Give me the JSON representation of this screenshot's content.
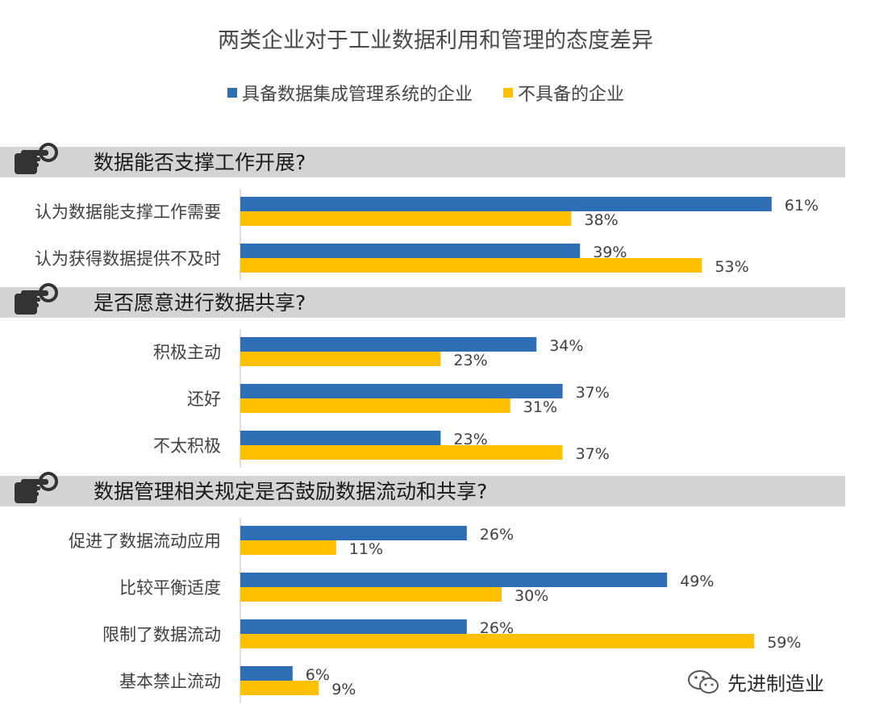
{
  "chart_data": {
    "type": "bar",
    "orientation": "horizontal",
    "title": "两类企业对于工业数据利用和管理的态度差异",
    "legend_placement": "top",
    "series": [
      {
        "name": "具备数据集成管理系统的企业",
        "color": "#2f6eb5"
      },
      {
        "name": "不具备的企业",
        "color": "#ffc000"
      }
    ],
    "value_suffix": "%",
    "xlim": [
      0,
      70
    ],
    "sections": [
      {
        "heading": "数据能否支撑工作开展?",
        "categories": [
          "认为数据能支撑工作需要",
          "认为获得数据提供不及时"
        ],
        "values": [
          [
            61,
            38
          ],
          [
            39,
            53
          ]
        ]
      },
      {
        "heading": "是否愿意进行数据共享?",
        "categories": [
          "积极主动",
          "还好",
          "不太积极"
        ],
        "values": [
          [
            34,
            23
          ],
          [
            37,
            31
          ],
          [
            23,
            37
          ]
        ]
      },
      {
        "heading": "数据管理相关规定是否鼓励数据流动和共享?",
        "categories": [
          "促进了数据流动应用",
          "比较平衡适度",
          "限制了数据流动",
          "基本禁止流动"
        ],
        "values": [
          [
            26,
            11
          ],
          [
            49,
            30
          ],
          [
            26,
            59
          ],
          [
            6,
            9
          ]
        ]
      }
    ]
  },
  "watermark": {
    "text": "先进制造业",
    "icon": "wechat-icon"
  },
  "colors": {
    "section_band": "#d4d4d4",
    "axis": "#bdbdbd",
    "icon": "#333333"
  }
}
